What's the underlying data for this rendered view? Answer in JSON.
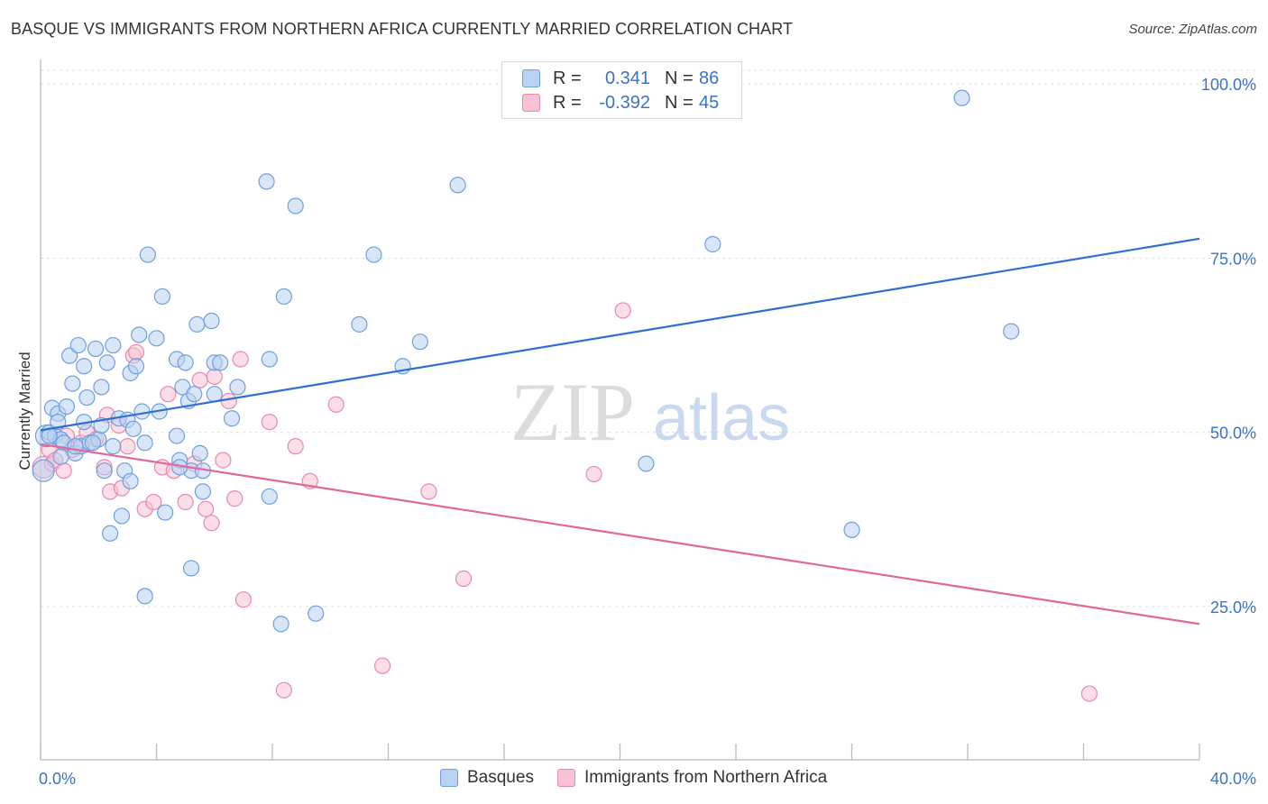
{
  "title": "BASQUE VS IMMIGRANTS FROM NORTHERN AFRICA CURRENTLY MARRIED CORRELATION CHART",
  "source": "Source: ZipAtlas.com",
  "watermark": {
    "zip": "ZIP",
    "atlas": "atlas"
  },
  "legend": {
    "rows": [
      {
        "r_label": "R =",
        "r_value": "0.341",
        "n_label": "N =",
        "n_value": "86"
      },
      {
        "r_label": "R =",
        "r_value": "-0.392",
        "n_label": "N =",
        "n_value": "45"
      }
    ]
  },
  "chart_data": {
    "type": "scatter",
    "ylabel": "Currently Married",
    "xlim": [
      0,
      40
    ],
    "ylim": [
      3,
      103
    ],
    "x_ticks": [
      "0.0%",
      "40.0%"
    ],
    "y_ticks": [
      {
        "value": 100,
        "label": "100.0%"
      },
      {
        "value": 75,
        "label": "75.0%"
      },
      {
        "value": 50,
        "label": "50.0%"
      },
      {
        "value": 25,
        "label": "25.0%"
      }
    ],
    "grid": true,
    "legend_position": "top-center",
    "series": [
      {
        "name": "Basques",
        "color": "#6f9fe0",
        "fill": "#b9d1f3",
        "trend": {
          "x0": 0,
          "y0": 50.3,
          "x1": 40,
          "y1": 77.8,
          "color": "#2f6fcf"
        },
        "points": [
          [
            0.1,
            44.5
          ],
          [
            0.2,
            49.5
          ],
          [
            0.3,
            50
          ],
          [
            0.4,
            53.5
          ],
          [
            0.5,
            49.5
          ],
          [
            0.6,
            52.7
          ],
          [
            0.6,
            51.5
          ],
          [
            0.7,
            49
          ],
          [
            0.8,
            48.5
          ],
          [
            0.9,
            53.7
          ],
          [
            1.0,
            61
          ],
          [
            1.1,
            57
          ],
          [
            1.2,
            47
          ],
          [
            1.3,
            62.5
          ],
          [
            1.4,
            48
          ],
          [
            1.5,
            51.5
          ],
          [
            1.5,
            59.5
          ],
          [
            1.6,
            55
          ],
          [
            1.7,
            48.5
          ],
          [
            1.9,
            62
          ],
          [
            2.0,
            49
          ],
          [
            2.1,
            56.5
          ],
          [
            2.2,
            44.5
          ],
          [
            2.3,
            60
          ],
          [
            2.4,
            35.5
          ],
          [
            2.5,
            62.5
          ],
          [
            2.5,
            48
          ],
          [
            2.7,
            52
          ],
          [
            2.8,
            38
          ],
          [
            2.9,
            44.5
          ],
          [
            3.0,
            51.8
          ],
          [
            3.1,
            43
          ],
          [
            3.1,
            58.5
          ],
          [
            3.3,
            59.5
          ],
          [
            3.4,
            64
          ],
          [
            3.5,
            53
          ],
          [
            3.6,
            48.5
          ],
          [
            3.6,
            26.5
          ],
          [
            3.7,
            75.5
          ],
          [
            4.0,
            63.5
          ],
          [
            4.1,
            53
          ],
          [
            4.2,
            69.5
          ],
          [
            4.3,
            38.5
          ],
          [
            4.7,
            60.5
          ],
          [
            4.7,
            49.5
          ],
          [
            4.8,
            46
          ],
          [
            4.9,
            56.5
          ],
          [
            5.0,
            60
          ],
          [
            5.1,
            54.5
          ],
          [
            5.2,
            44.5
          ],
          [
            5.2,
            30.5
          ],
          [
            5.3,
            55.5
          ],
          [
            5.4,
            65.5
          ],
          [
            5.5,
            47
          ],
          [
            5.6,
            44.5
          ],
          [
            5.6,
            41.5
          ],
          [
            5.9,
            66
          ],
          [
            6.0,
            55.5
          ],
          [
            6.0,
            60
          ],
          [
            6.2,
            60
          ],
          [
            6.6,
            52
          ],
          [
            6.8,
            56.5
          ],
          [
            7.8,
            86
          ],
          [
            7.9,
            60.5
          ],
          [
            7.9,
            40.8
          ],
          [
            8.3,
            22.5
          ],
          [
            8.4,
            69.5
          ],
          [
            8.8,
            82.5
          ],
          [
            9.5,
            24
          ],
          [
            11.0,
            65.5
          ],
          [
            11.5,
            75.5
          ],
          [
            12.5,
            59.5
          ],
          [
            13.1,
            63
          ],
          [
            14.4,
            85.5
          ],
          [
            20.9,
            45.5
          ],
          [
            23.2,
            77
          ],
          [
            28.0,
            36
          ],
          [
            31.8,
            98
          ],
          [
            33.5,
            64.5
          ],
          [
            0.3,
            49.5
          ],
          [
            0.7,
            46.5
          ],
          [
            1.2,
            48
          ],
          [
            1.8,
            48.5
          ],
          [
            2.1,
            51
          ],
          [
            3.2,
            50.5
          ],
          [
            4.8,
            45
          ]
        ]
      },
      {
        "name": "Immigrants from Northern Africa",
        "color": "#e88aab",
        "fill": "#f7c3d3",
        "trend": {
          "x0": 0,
          "y0": 48.3,
          "x1": 40,
          "y1": 22.5,
          "color": "#e0689a"
        },
        "points": [
          [
            0.1,
            45
          ],
          [
            0.3,
            47.5
          ],
          [
            0.4,
            45.5
          ],
          [
            0.5,
            46
          ],
          [
            0.9,
            49.5
          ],
          [
            1.1,
            47.5
          ],
          [
            1.4,
            48.5
          ],
          [
            1.6,
            50
          ],
          [
            1.9,
            49
          ],
          [
            2.2,
            45
          ],
          [
            2.3,
            52.5
          ],
          [
            2.4,
            41.5
          ],
          [
            2.7,
            51
          ],
          [
            2.8,
            42
          ],
          [
            3.0,
            48
          ],
          [
            3.2,
            61
          ],
          [
            3.3,
            61.5
          ],
          [
            3.6,
            39
          ],
          [
            3.9,
            40
          ],
          [
            4.2,
            45
          ],
          [
            4.4,
            55.5
          ],
          [
            4.6,
            44.5
          ],
          [
            5.0,
            40
          ],
          [
            5.3,
            45.5
          ],
          [
            5.5,
            57.5
          ],
          [
            5.7,
            39
          ],
          [
            5.9,
            37
          ],
          [
            6.0,
            58
          ],
          [
            6.3,
            46
          ],
          [
            6.5,
            54.5
          ],
          [
            6.7,
            40.5
          ],
          [
            6.9,
            60.5
          ],
          [
            7.0,
            26
          ],
          [
            7.9,
            51.5
          ],
          [
            8.4,
            13
          ],
          [
            8.8,
            48
          ],
          [
            9.3,
            43
          ],
          [
            10.2,
            54
          ],
          [
            11.8,
            16.5
          ],
          [
            13.4,
            41.5
          ],
          [
            14.6,
            29
          ],
          [
            19.1,
            44
          ],
          [
            20.1,
            67.5
          ],
          [
            36.2,
            12.5
          ],
          [
            0.8,
            44.5
          ]
        ]
      }
    ]
  }
}
